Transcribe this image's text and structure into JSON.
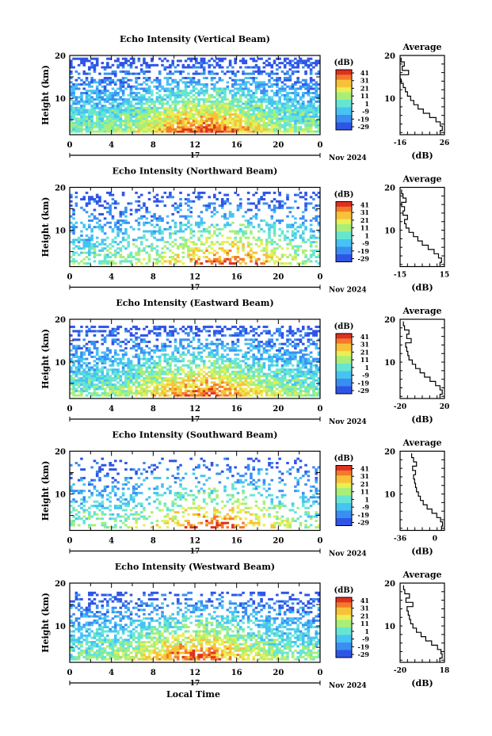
{
  "figure": {
    "xlabel_bottom": "Local Time",
    "date_day": "17",
    "date_month_year": "Nov 2024"
  },
  "chart_data": [
    {
      "type": "heatmap",
      "title": "Echo Intensity (Vertical Beam)",
      "ylabel": "Height (km)",
      "xlabel": "Local Time",
      "xlim": [
        0,
        24
      ],
      "ylim": [
        1.5,
        20
      ],
      "x_ticks": [
        "0",
        "4",
        "8",
        "12",
        "16",
        "20",
        "0"
      ],
      "y_ticks": [
        "20",
        "10"
      ],
      "colorbar": {
        "unit": "(dB)",
        "ticks": [
          "41",
          "31",
          "21",
          "11",
          "1",
          "-9",
          "-19",
          "-29"
        ],
        "range": [
          -29,
          41
        ]
      },
      "profile": {
        "title": "Average",
        "xlabel": "(dB)",
        "xlim": [
          -16,
          26
        ],
        "x_ticks": [
          "-16",
          "26"
        ],
        "heights": [
          2,
          3,
          4,
          5,
          6,
          7,
          8,
          9,
          10,
          11,
          12,
          13,
          14,
          15,
          16,
          17,
          18,
          19
        ],
        "values": [
          22,
          24,
          22,
          18,
          12,
          6,
          1,
          -3,
          -6,
          -9,
          -11,
          -13,
          -15,
          -16,
          -8,
          -14,
          -12,
          -15
        ]
      },
      "pattern": {
        "density": 0.92,
        "strong_center": 13,
        "gap_bands": [
          [
            14.5,
            15.5
          ],
          [
            16,
            17
          ]
        ],
        "top": 19.2
      }
    },
    {
      "type": "heatmap",
      "title": "Echo Intensity (Northward Beam)",
      "ylabel": "Height (km)",
      "xlabel": "Local Time",
      "xlim": [
        0,
        24
      ],
      "ylim": [
        1.5,
        20
      ],
      "x_ticks": [
        "0",
        "4",
        "8",
        "12",
        "16",
        "20",
        "0"
      ],
      "y_ticks": [
        "20",
        "10"
      ],
      "colorbar": {
        "unit": "(dB)",
        "ticks": [
          "41",
          "31",
          "21",
          "11",
          "1",
          "-9",
          "-19",
          "-29"
        ],
        "range": [
          -29,
          41
        ]
      },
      "profile": {
        "title": "Average",
        "xlabel": "(dB)",
        "xlim": [
          -15,
          15
        ],
        "x_ticks": [
          "-15",
          "15"
        ],
        "heights": [
          2,
          3,
          4,
          5,
          6,
          7,
          8,
          9,
          10,
          11,
          12,
          13,
          14,
          15,
          16,
          17,
          18,
          19
        ],
        "values": [
          12,
          13,
          11,
          8,
          4,
          0,
          -3,
          -6,
          -9,
          -11,
          -12,
          -10,
          -13,
          -12,
          -14,
          -11,
          -13,
          -14
        ]
      },
      "pattern": {
        "density": 0.45,
        "strong_center": 15,
        "gap_bands": [],
        "top": 19
      }
    },
    {
      "type": "heatmap",
      "title": "Echo Intensity (Eastward Beam)",
      "ylabel": "Height (km)",
      "xlabel": "Local Time",
      "xlim": [
        0,
        24
      ],
      "ylim": [
        1.5,
        20
      ],
      "x_ticks": [
        "0",
        "4",
        "8",
        "12",
        "16",
        "20",
        "0"
      ],
      "y_ticks": [
        "20",
        "10"
      ],
      "colorbar": {
        "unit": "(dB)",
        "ticks": [
          "41",
          "31",
          "21",
          "11",
          "1",
          "-9",
          "-19",
          "-29"
        ],
        "range": [
          -29,
          41
        ]
      },
      "profile": {
        "title": "Average",
        "xlabel": "(dB)",
        "xlim": [
          -20,
          20
        ],
        "x_ticks": [
          "-20",
          "20"
        ],
        "heights": [
          2,
          3,
          4,
          5,
          6,
          7,
          8,
          9,
          10,
          11,
          12,
          13,
          14,
          15,
          16,
          17,
          18,
          19
        ],
        "values": [
          16,
          18,
          16,
          12,
          7,
          2,
          -2,
          -6,
          -9,
          -12,
          -13,
          -14,
          -15,
          -10,
          -14,
          -12,
          -16,
          -17
        ]
      },
      "pattern": {
        "density": 0.8,
        "strong_center": 13,
        "gap_bands": [
          [
            15,
            16
          ]
        ],
        "top": 18.5
      }
    },
    {
      "type": "heatmap",
      "title": "Echo Intensity (Southward Beam)",
      "ylabel": "Height (km)",
      "xlabel": "Local Time",
      "xlim": [
        0,
        24
      ],
      "ylim": [
        1.5,
        20
      ],
      "x_ticks": [
        "0",
        "4",
        "8",
        "12",
        "16",
        "20",
        "0"
      ],
      "y_ticks": [
        "20",
        "10"
      ],
      "colorbar": {
        "unit": "(dB)",
        "ticks": [
          "41",
          "31",
          "21",
          "11",
          "1",
          "-9",
          "-19",
          "-29"
        ],
        "range": [
          -29,
          41
        ]
      },
      "profile": {
        "title": "Average",
        "xlabel": "(dB)",
        "xlim": [
          -36,
          10
        ],
        "x_ticks": [
          "-36",
          "0"
        ],
        "heights": [
          2,
          3,
          4,
          5,
          6,
          7,
          8,
          9,
          10,
          11,
          12,
          13,
          14,
          15,
          16,
          17,
          18,
          19
        ],
        "values": [
          7,
          8,
          6,
          2,
          -3,
          -8,
          -12,
          -15,
          -17,
          -19,
          -20,
          -21,
          -22,
          -20,
          -23,
          -19,
          -22,
          -24
        ]
      },
      "pattern": {
        "density": 0.35,
        "strong_center": 14,
        "gap_bands": [],
        "top": 18.5
      }
    },
    {
      "type": "heatmap",
      "title": "Echo Intensity (Westward Beam)",
      "ylabel": "Height (km)",
      "xlabel": "Local Time",
      "xlim": [
        0,
        24
      ],
      "ylim": [
        1.5,
        20
      ],
      "x_ticks": [
        "0",
        "4",
        "8",
        "12",
        "16",
        "20",
        "0"
      ],
      "y_ticks": [
        "20",
        "10"
      ],
      "colorbar": {
        "unit": "(dB)",
        "ticks": [
          "41",
          "31",
          "21",
          "11",
          "1",
          "-9",
          "-19",
          "-29"
        ],
        "range": [
          -29,
          41
        ]
      },
      "profile": {
        "title": "Average",
        "xlabel": "(dB)",
        "xlim": [
          -20,
          18
        ],
        "x_ticks": [
          "-20",
          "18"
        ],
        "heights": [
          2,
          3,
          4,
          5,
          6,
          7,
          8,
          9,
          10,
          11,
          12,
          13,
          14,
          15,
          16,
          17,
          18,
          19
        ],
        "values": [
          14,
          16,
          15,
          12,
          7,
          2,
          -2,
          -6,
          -9,
          -11,
          -12,
          -13,
          -14,
          -9,
          -15,
          -12,
          -16,
          -17
        ]
      },
      "pattern": {
        "density": 0.72,
        "strong_center": 12,
        "gap_bands": [
          [
            16,
            17
          ]
        ],
        "top": 18
      }
    }
  ]
}
